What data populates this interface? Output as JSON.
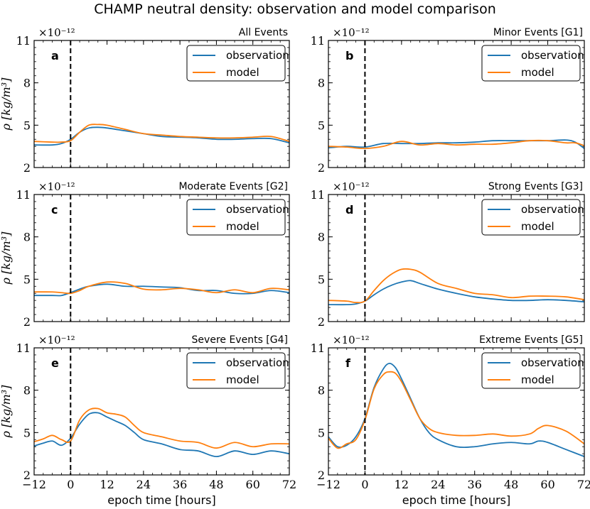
{
  "title": "CHAMP neutral density: observation and model comparison",
  "colors": {
    "observation": "#1f77b4",
    "model": "#ff7f0e",
    "vline": "#000000"
  },
  "chart_data": [
    {
      "type": "line",
      "letter": "a",
      "title": "All Events",
      "ylabel": "ρ [kg/m³]",
      "xlabel": "",
      "offset_label": "×10⁻¹²",
      "xlim": [
        -12,
        72
      ],
      "ylim": [
        2,
        11
      ],
      "xticks": [
        "−12",
        "0",
        "12",
        "24",
        "36",
        "48",
        "60",
        "72"
      ],
      "yticks": [
        "2",
        "5",
        "8",
        "11"
      ],
      "legend": [
        "observation",
        "model"
      ],
      "x": [
        -12,
        -6,
        -3,
        0,
        3,
        6,
        9,
        12,
        18,
        24,
        30,
        36,
        42,
        48,
        54,
        60,
        66,
        72
      ],
      "series": [
        {
          "name": "observation",
          "values": [
            3.6,
            3.6,
            3.7,
            4.0,
            4.5,
            4.8,
            4.85,
            4.8,
            4.6,
            4.4,
            4.2,
            4.15,
            4.1,
            4.0,
            4.0,
            4.05,
            4.05,
            3.75
          ]
        },
        {
          "name": "model",
          "values": [
            3.85,
            3.8,
            3.8,
            3.9,
            4.5,
            5.0,
            5.05,
            5.0,
            4.7,
            4.4,
            4.3,
            4.2,
            4.15,
            4.1,
            4.1,
            4.15,
            4.2,
            3.85
          ]
        }
      ]
    },
    {
      "type": "line",
      "letter": "b",
      "title": "Minor Events [G1]",
      "ylabel": "",
      "xlabel": "",
      "offset_label": "×10⁻¹²",
      "xlim": [
        -12,
        72
      ],
      "ylim": [
        2,
        11
      ],
      "xticks": [
        "−12",
        "0",
        "12",
        "24",
        "36",
        "48",
        "60",
        "72"
      ],
      "yticks": [
        "2",
        "5",
        "8",
        "11"
      ],
      "legend": [
        "observation",
        "model"
      ],
      "x": [
        -12,
        -6,
        0,
        6,
        12,
        18,
        24,
        30,
        36,
        42,
        48,
        54,
        60,
        66,
        69,
        72
      ],
      "series": [
        {
          "name": "observation",
          "values": [
            3.4,
            3.5,
            3.45,
            3.7,
            3.7,
            3.7,
            3.75,
            3.75,
            3.8,
            3.9,
            3.9,
            3.9,
            3.9,
            3.95,
            3.8,
            3.35
          ]
        },
        {
          "name": "model",
          "values": [
            3.5,
            3.45,
            3.35,
            3.5,
            3.85,
            3.6,
            3.7,
            3.6,
            3.65,
            3.65,
            3.75,
            3.9,
            3.9,
            3.75,
            3.75,
            3.55
          ]
        }
      ]
    },
    {
      "type": "line",
      "letter": "c",
      "title": "Moderate Events [G2]",
      "ylabel": "ρ [kg/m³]",
      "xlabel": "",
      "offset_label": "×10⁻¹²",
      "xlim": [
        -12,
        72
      ],
      "ylim": [
        2,
        11
      ],
      "xticks": [
        "−12",
        "0",
        "12",
        "24",
        "36",
        "48",
        "60",
        "72"
      ],
      "yticks": [
        "2",
        "5",
        "8",
        "11"
      ],
      "legend": [
        "observation",
        "model"
      ],
      "x": [
        -12,
        -6,
        -3,
        0,
        3,
        6,
        12,
        18,
        24,
        30,
        36,
        42,
        48,
        54,
        60,
        66,
        72
      ],
      "series": [
        {
          "name": "observation",
          "values": [
            3.85,
            3.85,
            3.85,
            4.05,
            4.3,
            4.5,
            4.65,
            4.5,
            4.5,
            4.45,
            4.4,
            4.2,
            4.2,
            4.0,
            4.0,
            4.2,
            4.05
          ]
        },
        {
          "name": "model",
          "values": [
            4.1,
            4.1,
            4.05,
            4.0,
            4.2,
            4.5,
            4.8,
            4.7,
            4.3,
            4.25,
            4.35,
            4.25,
            4.05,
            4.25,
            4.05,
            4.35,
            4.25
          ]
        }
      ]
    },
    {
      "type": "line",
      "letter": "d",
      "title": "Strong Events [G3]",
      "ylabel": "",
      "xlabel": "",
      "offset_label": "×10⁻¹²",
      "xlim": [
        -12,
        72
      ],
      "ylim": [
        2,
        11
      ],
      "xticks": [
        "−12",
        "0",
        "12",
        "24",
        "36",
        "48",
        "60",
        "72"
      ],
      "yticks": [
        "2",
        "5",
        "8",
        "11"
      ],
      "legend": [
        "observation",
        "model"
      ],
      "x": [
        -12,
        -6,
        -3,
        0,
        3,
        6,
        9,
        12,
        15,
        18,
        24,
        30,
        36,
        42,
        48,
        54,
        60,
        66,
        72
      ],
      "series": [
        {
          "name": "observation",
          "values": [
            3.2,
            3.2,
            3.25,
            3.45,
            3.9,
            4.3,
            4.6,
            4.8,
            4.9,
            4.7,
            4.3,
            4.0,
            3.75,
            3.6,
            3.5,
            3.5,
            3.55,
            3.5,
            3.4
          ]
        },
        {
          "name": "model",
          "values": [
            3.5,
            3.45,
            3.35,
            3.45,
            4.2,
            4.9,
            5.4,
            5.7,
            5.7,
            5.5,
            4.7,
            4.35,
            4.0,
            3.9,
            3.7,
            3.8,
            3.8,
            3.75,
            3.55
          ]
        }
      ]
    },
    {
      "type": "line",
      "letter": "e",
      "title": "Severe Events [G4]",
      "ylabel": "ρ [kg/m³]",
      "xlabel": "epoch time [hours]",
      "offset_label": "×10⁻¹²",
      "xlim": [
        -12,
        72
      ],
      "ylim": [
        2,
        11
      ],
      "xticks": [
        "−12",
        "0",
        "12",
        "24",
        "36",
        "48",
        "60",
        "72"
      ],
      "yticks": [
        "2",
        "5",
        "8",
        "11"
      ],
      "legend": [
        "observation",
        "model"
      ],
      "x": [
        -12,
        -9,
        -6,
        -3,
        0,
        3,
        6,
        9,
        12,
        15,
        18,
        21,
        24,
        30,
        36,
        42,
        48,
        54,
        60,
        66,
        72
      ],
      "series": [
        {
          "name": "observation",
          "values": [
            4.05,
            4.25,
            4.4,
            4.1,
            4.6,
            5.6,
            6.3,
            6.4,
            6.1,
            5.8,
            5.5,
            5.0,
            4.5,
            4.2,
            3.8,
            3.7,
            3.3,
            3.7,
            3.45,
            3.7,
            3.5
          ]
        },
        {
          "name": "model",
          "values": [
            4.35,
            4.55,
            4.8,
            4.5,
            4.4,
            5.9,
            6.6,
            6.7,
            6.4,
            6.3,
            6.1,
            5.5,
            5.0,
            4.7,
            4.4,
            4.3,
            3.9,
            4.3,
            4.0,
            4.2,
            4.2
          ]
        }
      ]
    },
    {
      "type": "line",
      "letter": "f",
      "title": "Extreme Events [G5]",
      "ylabel": "",
      "xlabel": "epoch time [hours]",
      "offset_label": "×10⁻¹²",
      "xlim": [
        -12,
        72
      ],
      "ylim": [
        2,
        11
      ],
      "xticks": [
        "−12",
        "0",
        "12",
        "24",
        "36",
        "48",
        "60",
        "72"
      ],
      "yticks": [
        "2",
        "5",
        "8",
        "11"
      ],
      "legend": [
        "observation",
        "model"
      ],
      "x": [
        -12,
        -9,
        -6,
        -3,
        0,
        3,
        6,
        8,
        10,
        12,
        15,
        18,
        21,
        24,
        30,
        36,
        42,
        48,
        54,
        57,
        60,
        66,
        72
      ],
      "series": [
        {
          "name": "observation",
          "values": [
            4.7,
            4.0,
            4.1,
            4.7,
            6.0,
            8.2,
            9.5,
            9.9,
            9.6,
            8.8,
            7.4,
            6.0,
            5.0,
            4.5,
            4.0,
            4.0,
            4.2,
            4.3,
            4.2,
            4.4,
            4.3,
            3.8,
            3.3
          ]
        },
        {
          "name": "model",
          "values": [
            4.6,
            3.9,
            4.2,
            4.5,
            5.9,
            8.1,
            9.1,
            9.3,
            9.2,
            8.6,
            7.3,
            6.0,
            5.3,
            5.0,
            4.8,
            4.8,
            4.9,
            4.75,
            4.9,
            5.3,
            5.5,
            5.1,
            4.2
          ]
        }
      ]
    }
  ]
}
